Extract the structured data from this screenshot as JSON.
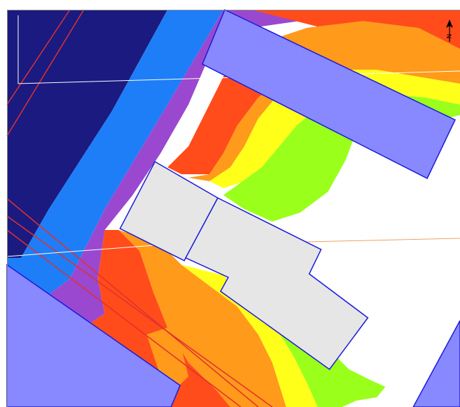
{
  "map": {
    "colors": {
      "background": "#ffffff",
      "zone_darkblue": "#1a1a80",
      "zone_blue": "#1e7ef7",
      "zone_purple": "#9a48cf",
      "zone_red": "#ff4c1a",
      "zone_orange": "#ff9a1a",
      "zone_yellow": "#ffff1a",
      "zone_green": "#9aff1a",
      "building_fill": "#e6e6e6",
      "neighbor_fill": "#8888ff",
      "outline": "#1a1adc",
      "property_line": "#e03030",
      "guide_line_white": "#ffffff",
      "guide_line_orange": "#f0a060"
    },
    "north_arrow": {
      "icon": "north-arrow-icon",
      "label": "N"
    }
  }
}
